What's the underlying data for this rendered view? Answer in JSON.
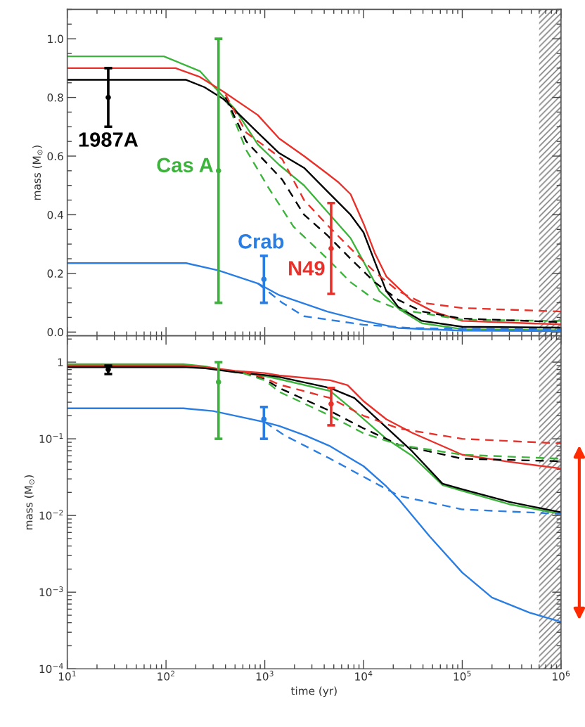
{
  "chart_data": [
    {
      "type": "line",
      "ylabel": "mass (M$_{⊙}$)",
      "log": "x",
      "xlim": [
        10,
        1000000
      ],
      "xticks": [
        {
          "value": 10,
          "label": null
        },
        {
          "value": 100,
          "label": null
        },
        {
          "value": 1000,
          "label": null
        },
        {
          "value": 10000,
          "label": null
        },
        {
          "value": 100000,
          "label": null
        },
        {
          "value": 1000000,
          "label": null
        }
      ],
      "ylim": [
        -0.013,
        1.1
      ],
      "yticks": [
        {
          "value": 0,
          "label": "0.0"
        },
        {
          "value": 0.2,
          "label": "0.2"
        },
        {
          "value": 0.4,
          "label": "0.4"
        },
        {
          "value": 0.6,
          "label": "0.6"
        },
        {
          "value": 0.8,
          "label": "0.8"
        },
        {
          "value": 1,
          "label": "1.0"
        }
      ],
      "tick_labels": "y",
      "bands": [
        {
          "axis": "x",
          "from": 600000,
          "to": 1000000,
          "color": "#808080"
        }
      ],
      "series": [
        {
          "color": "#3cb43c",
          "line_style": "solid",
          "x": [
            10,
            95,
            220,
            340,
            500,
            850,
            1400,
            2500,
            4300,
            7400,
            10000,
            14500,
            23000,
            39000,
            100000,
            1000000
          ],
          "values": [
            0.94,
            0.94,
            0.89,
            0.82,
            0.76,
            0.64,
            0.57,
            0.5,
            0.41,
            0.32,
            0.24,
            0.14,
            0.078,
            0.03,
            0.01,
            0.006
          ]
        },
        {
          "color": "#e8312a",
          "line_style": "solid",
          "x": [
            10,
            125,
            220,
            380,
            850,
            1400,
            2500,
            4300,
            5600,
            7400,
            10000,
            13000,
            17000,
            30000,
            51000,
            100000,
            1000000
          ],
          "values": [
            0.9,
            0.9,
            0.87,
            0.82,
            0.74,
            0.66,
            0.6,
            0.54,
            0.51,
            0.47,
            0.37,
            0.27,
            0.19,
            0.11,
            0.07,
            0.038,
            0.026
          ]
        },
        {
          "color": "#000000",
          "line_style": "solid",
          "x": [
            10,
            160,
            245,
            380,
            850,
            1400,
            2500,
            4300,
            7400,
            10000,
            13000,
            17000,
            22400,
            39000,
            100000,
            1000000
          ],
          "values": [
            0.86,
            0.86,
            0.835,
            0.795,
            0.68,
            0.61,
            0.56,
            0.48,
            0.4,
            0.34,
            0.24,
            0.14,
            0.086,
            0.038,
            0.018,
            0.015
          ]
        },
        {
          "color": "#3cb43c",
          "line_style": "dashed",
          "x": [
            400,
            650,
            1100,
            1950,
            2500,
            4300,
            7400,
            13000,
            22400,
            100000,
            1000000
          ],
          "values": [
            0.8,
            0.62,
            0.49,
            0.36,
            0.325,
            0.25,
            0.17,
            0.11,
            0.078,
            0.042,
            0.038
          ]
        },
        {
          "color": "#000000",
          "line_style": "dashed",
          "x": [
            400,
            650,
            1500,
            2500,
            4300,
            7400,
            13000,
            22400,
            39000,
            100000,
            1000000
          ],
          "values": [
            0.8,
            0.65,
            0.52,
            0.4,
            0.33,
            0.25,
            0.17,
            0.11,
            0.07,
            0.046,
            0.034
          ]
        },
        {
          "color": "#e8312a",
          "line_style": "dashed",
          "x": [
            400,
            650,
            1500,
            2500,
            4300,
            7400,
            13000,
            22400,
            39000,
            100000,
            1000000
          ],
          "values": [
            0.81,
            0.68,
            0.59,
            0.45,
            0.365,
            0.285,
            0.205,
            0.14,
            0.1,
            0.082,
            0.07
          ]
        },
        {
          "color": "#2a7de1",
          "line_style": "solid",
          "x": [
            10,
            160,
            340,
            850,
            1400,
            4300,
            10000,
            22400,
            100000,
            1000000
          ],
          "values": [
            0.235,
            0.235,
            0.21,
            0.166,
            0.126,
            0.07,
            0.038,
            0.014,
            0.005,
            0.003
          ]
        },
        {
          "color": "#2a7de1",
          "line_style": "dashed",
          "x": [
            850,
            1500,
            2500,
            10000,
            30000,
            100000,
            1000000
          ],
          "values": [
            0.166,
            0.1,
            0.054,
            0.025,
            0.014,
            0.011,
            0.01
          ]
        },
        {
          "type": "scatter",
          "name": "1987A",
          "color": "#000000",
          "marker": "circle",
          "x": [
            26
          ],
          "values": [
            0.8
          ],
          "errors": [
            [
              0.7,
              0.9
            ]
          ]
        },
        {
          "type": "scatter",
          "name": "Cas A",
          "color": "#3cb43c",
          "marker": "circle",
          "x": [
            340
          ],
          "values": [
            0.55
          ],
          "errors": [
            [
              0.1,
              1.0
            ]
          ]
        },
        {
          "type": "scatter",
          "name": "Crab",
          "color": "#2a7de1",
          "marker": "circle",
          "x": [
            980
          ],
          "values": [
            0.18
          ],
          "errors": [
            [
              0.1,
              0.26
            ]
          ]
        },
        {
          "type": "scatter",
          "name": "N49",
          "color": "#e8312a",
          "marker": "circle",
          "x": [
            4700
          ],
          "values": [
            0.285
          ],
          "errors": [
            [
              0.13,
              0.44
            ]
          ]
        }
      ]
    },
    {
      "type": "line",
      "ylabel": "mass (M$_{⊙}$)",
      "xlabel": "time (yr)",
      "log": "xy",
      "xlim": [
        10,
        1000000
      ],
      "xticks": [
        {
          "value": 10,
          "label": "10$^{1}$"
        },
        {
          "value": 100,
          "label": "10$^{2}$"
        },
        {
          "value": 1000,
          "label": "10$^{3}$"
        },
        {
          "value": 10000,
          "label": "10$^{4}$"
        },
        {
          "value": 100000,
          "label": "10$^{5}$"
        },
        {
          "value": 1000000,
          "label": "10$^{6}$"
        }
      ],
      "ylim": [
        0.0001,
        2.2
      ],
      "yticks": [
        {
          "value": 1,
          "label": "1"
        },
        {
          "value": 0.1,
          "label": "10$^{−1}$"
        },
        {
          "value": 0.01,
          "label": "10$^{−2}$"
        },
        {
          "value": 0.001,
          "label": "10$^{−3}$"
        },
        {
          "value": 0.0001,
          "label": "10$^{−4}$"
        }
      ],
      "bands": [
        {
          "axis": "x",
          "from": 600000,
          "to": 1000000,
          "color": "#808080"
        }
      ],
      "series": [
        {
          "color": "#3cb43c",
          "line_style": "solid",
          "x": [
            10,
            150,
            250,
            500,
            1000,
            1400,
            4600,
            8100,
            17000,
            31000,
            63000,
            100000,
            300000,
            1000000
          ],
          "values": [
            0.94,
            0.94,
            0.88,
            0.74,
            0.66,
            0.6,
            0.42,
            0.23,
            0.1,
            0.06,
            0.025,
            0.021,
            0.014,
            0.0105
          ]
        },
        {
          "color": "#e8312a",
          "line_style": "solid",
          "x": [
            10,
            150,
            250,
            500,
            1000,
            1400,
            4600,
            6900,
            10000,
            17000,
            31000,
            100000,
            300000,
            1000000
          ],
          "values": [
            0.9,
            0.9,
            0.86,
            0.77,
            0.72,
            0.67,
            0.58,
            0.5,
            0.31,
            0.18,
            0.12,
            0.062,
            0.05,
            0.041
          ]
        },
        {
          "color": "#000000",
          "line_style": "solid",
          "x": [
            10,
            150,
            250,
            500,
            1000,
            1400,
            4600,
            8100,
            14500,
            31000,
            63000,
            100000,
            300000,
            1000000
          ],
          "values": [
            0.86,
            0.86,
            0.83,
            0.74,
            0.68,
            0.64,
            0.46,
            0.34,
            0.17,
            0.069,
            0.026,
            0.022,
            0.015,
            0.011
          ]
        },
        {
          "color": "#000000",
          "line_style": "dashed",
          "x": [
            600,
            1000,
            1400,
            4600,
            10000,
            23000,
            100000,
            1000000
          ],
          "values": [
            0.73,
            0.6,
            0.46,
            0.23,
            0.137,
            0.083,
            0.055,
            0.051
          ]
        },
        {
          "color": "#3cb43c",
          "line_style": "dashed",
          "x": [
            600,
            1000,
            1400,
            4600,
            10000,
            23000,
            100000,
            1000000
          ],
          "values": [
            0.72,
            0.58,
            0.41,
            0.2,
            0.118,
            0.083,
            0.062,
            0.055
          ]
        },
        {
          "color": "#e8312a",
          "line_style": "dashed",
          "x": [
            600,
            1000,
            1400,
            4600,
            10000,
            23000,
            100000,
            1000000
          ],
          "values": [
            0.76,
            0.62,
            0.51,
            0.34,
            0.2,
            0.136,
            0.1,
            0.087
          ]
        },
        {
          "color": "#2a7de1",
          "line_style": "solid",
          "x": [
            10,
            150,
            300,
            1000,
            1400,
            2600,
            4600,
            10000,
            17000,
            23000,
            47000,
            100000,
            200000,
            480000,
            1000000
          ],
          "values": [
            0.25,
            0.25,
            0.23,
            0.165,
            0.147,
            0.11,
            0.08,
            0.044,
            0.024,
            0.016,
            0.0053,
            0.0018,
            0.00085,
            0.00054,
            0.00041
          ]
        },
        {
          "color": "#2a7de1",
          "line_style": "dashed",
          "x": [
            1000,
            1600,
            4600,
            10000,
            23000,
            100000,
            1000000
          ],
          "values": [
            0.165,
            0.11,
            0.055,
            0.032,
            0.018,
            0.012,
            0.0105
          ]
        },
        {
          "type": "scatter",
          "color": "#000000",
          "marker": "circle",
          "x": [
            26
          ],
          "values": [
            0.8
          ],
          "errors": [
            [
              0.7,
              0.9
            ]
          ]
        },
        {
          "type": "scatter",
          "color": "#3cb43c",
          "marker": "circle",
          "x": [
            340
          ],
          "values": [
            0.55
          ],
          "errors": [
            [
              0.1,
              1.0
            ]
          ]
        },
        {
          "type": "scatter",
          "color": "#2a7de1",
          "marker": "circle",
          "x": [
            980
          ],
          "values": [
            0.18
          ],
          "errors": [
            [
              0.1,
              0.26
            ]
          ]
        },
        {
          "type": "scatter",
          "color": "#e8312a",
          "marker": "circle",
          "x": [
            4700
          ],
          "values": [
            0.285
          ],
          "errors": [
            [
              0.15,
              0.46
            ]
          ]
        }
      ]
    }
  ]
}
